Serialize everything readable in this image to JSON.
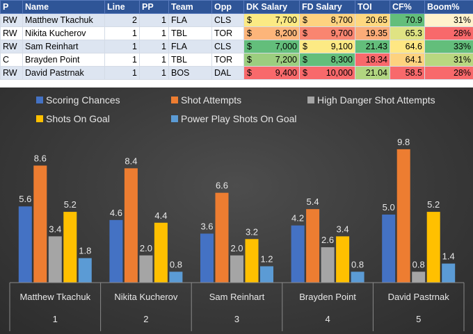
{
  "table": {
    "headers": [
      "P",
      "Name",
      "Line",
      "PP",
      "Team",
      "Opp",
      "DK Salary",
      "FD Salary",
      "TOI",
      "CF%",
      "Boom%"
    ],
    "currency": "$",
    "rows": [
      {
        "p": "RW",
        "name": "Matthew Tkachuk",
        "line": "2",
        "pp": "1",
        "team": "FLA",
        "opp": "CLS",
        "dk": "7,700",
        "fd": "8,700",
        "toi": "20.65",
        "cf": "70.9",
        "boom": "31%",
        "dk_color": "#fbea84",
        "fd_color": "#fed280",
        "toi_color": "#fed880",
        "cf_color": "#63be7b",
        "boom_color": "#fff2cc"
      },
      {
        "p": "RW",
        "name": "Nikita Kucherov",
        "line": "1",
        "pp": "1",
        "team": "TBL",
        "opp": "TOR",
        "dk": "8,200",
        "fd": "9,700",
        "toi": "19.35",
        "cf": "65.3",
        "boom": "28%",
        "dk_color": "#fcb57a",
        "fd_color": "#f98570",
        "toi_color": "#fbac78",
        "cf_color": "#dfe383",
        "boom_color": "#f8696b"
      },
      {
        "p": "RW",
        "name": "Sam Reinhart",
        "line": "1",
        "pp": "1",
        "team": "FLA",
        "opp": "CLS",
        "dk": "7,000",
        "fd": "9,100",
        "toi": "21.43",
        "cf": "64.6",
        "boom": "33%",
        "dk_color": "#63be7b",
        "fd_color": "#fcea84",
        "toi_color": "#63be7b",
        "cf_color": "#fee783",
        "boom_color": "#63be7b"
      },
      {
        "p": "C",
        "name": "Brayden Point",
        "line": "1",
        "pp": "1",
        "team": "TBL",
        "opp": "TOR",
        "dk": "7,200",
        "fd": "8,300",
        "toi": "18.34",
        "cf": "64.1",
        "boom": "31%",
        "dk_color": "#9cce7f",
        "fd_color": "#63be7b",
        "toi_color": "#f8696b",
        "cf_color": "#fdd27f",
        "boom_color": "#b9d780"
      },
      {
        "p": "RW",
        "name": "David Pastrnak",
        "line": "1",
        "pp": "1",
        "team": "BOS",
        "opp": "DAL",
        "dk": "9,400",
        "fd": "10,000",
        "toi": "21.04",
        "cf": "58.5",
        "boom": "28%",
        "dk_color": "#f8696b",
        "fd_color": "#f8696b",
        "toi_color": "#b1d580",
        "cf_color": "#f8696b",
        "boom_color": "#f8696b"
      }
    ]
  },
  "chart_data": {
    "type": "bar",
    "categories": [
      "Matthew Tkachuk",
      "Nikita Kucherov",
      "Sam Reinhart",
      "Brayden Point",
      "David Pastrnak"
    ],
    "category_numbers": [
      "1",
      "2",
      "3",
      "4",
      "5"
    ],
    "series": [
      {
        "name": "Scoring Chances",
        "values": [
          5.6,
          4.6,
          3.6,
          4.2,
          5.0
        ],
        "color": "#4472c4"
      },
      {
        "name": "Shot Attempts",
        "values": [
          8.6,
          8.4,
          6.6,
          5.4,
          9.8
        ],
        "color": "#ed7d31"
      },
      {
        "name": "High Danger Shot Attempts",
        "values": [
          3.4,
          2.0,
          2.0,
          2.6,
          0.8
        ],
        "color": "#a5a5a5"
      },
      {
        "name": "Shots On Goal",
        "values": [
          5.2,
          4.4,
          3.2,
          3.4,
          5.2
        ],
        "color": "#ffc000"
      },
      {
        "name": "Power Play Shots On Goal",
        "values": [
          1.8,
          0.8,
          1.2,
          0.8,
          1.4
        ],
        "color": "#5b9bd5"
      }
    ],
    "ylim": [
      0,
      12
    ],
    "legend_position": "top",
    "grid": false
  }
}
